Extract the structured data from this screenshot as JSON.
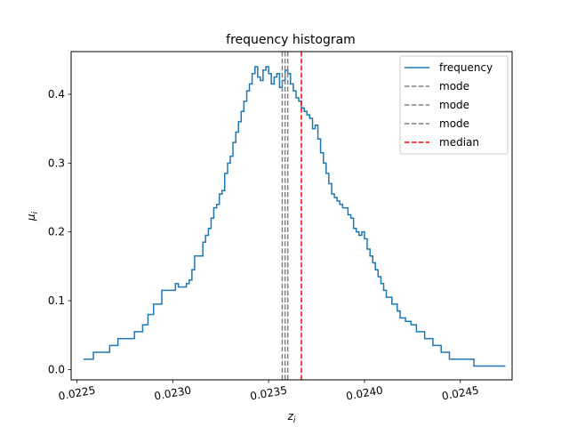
{
  "chart_data": {
    "type": "line",
    "title": "frequency histogram",
    "xlabel": "z",
    "xlabel_sub": "i",
    "ylabel": "μ",
    "ylabel_sub": "i",
    "xlim": [
      0.02247,
      0.02477
    ],
    "ylim": [
      -0.015,
      0.462
    ],
    "x_ticks": [
      0.0225,
      0.023,
      0.0235,
      0.024,
      0.0245
    ],
    "x_tick_labels": [
      "0.0225",
      "0.0230",
      "0.0235",
      "0.0240",
      "0.0245"
    ],
    "y_ticks": [
      0.0,
      0.1,
      0.2,
      0.3,
      0.4
    ],
    "y_tick_labels": [
      "0.0",
      "0.1",
      "0.2",
      "0.3",
      "0.4"
    ],
    "grid": false,
    "legend_position": "top-right",
    "series": [
      {
        "name": "frequency",
        "style": "step",
        "color": "#1f77b4",
        "x": [
          0.022535,
          0.022543,
          0.022586,
          0.022629,
          0.022671,
          0.022714,
          0.022757,
          0.0228,
          0.022843,
          0.022871,
          0.0229,
          0.022943,
          0.022986,
          0.023014,
          0.023029,
          0.023071,
          0.023086,
          0.0231,
          0.023114,
          0.023143,
          0.023157,
          0.023171,
          0.023186,
          0.0232,
          0.023214,
          0.023229,
          0.023243,
          0.023257,
          0.023271,
          0.023286,
          0.0233,
          0.023314,
          0.023329,
          0.023343,
          0.023357,
          0.023371,
          0.023386,
          0.0234,
          0.023414,
          0.023429,
          0.023443,
          0.023457,
          0.023471,
          0.023486,
          0.0235,
          0.023514,
          0.023529,
          0.023543,
          0.023557,
          0.023571,
          0.023586,
          0.0236,
          0.023614,
          0.023629,
          0.023643,
          0.023657,
          0.023671,
          0.023686,
          0.0237,
          0.023714,
          0.023729,
          0.023743,
          0.023757,
          0.023771,
          0.023786,
          0.0238,
          0.023814,
          0.023829,
          0.023843,
          0.023857,
          0.023871,
          0.023886,
          0.0239,
          0.023914,
          0.023929,
          0.023943,
          0.023957,
          0.023971,
          0.023986,
          0.024,
          0.024014,
          0.024029,
          0.024043,
          0.024057,
          0.024071,
          0.024086,
          0.0241,
          0.024114,
          0.024143,
          0.024171,
          0.024186,
          0.024214,
          0.024243,
          0.024271,
          0.024314,
          0.024357,
          0.0244,
          0.024443,
          0.024486,
          0.024529,
          0.024571,
          0.024614,
          0.024671,
          0.024729
        ],
        "y": [
          0.015,
          0.015,
          0.025,
          0.025,
          0.035,
          0.045,
          0.045,
          0.055,
          0.065,
          0.08,
          0.095,
          0.115,
          0.115,
          0.125,
          0.12,
          0.125,
          0.13,
          0.145,
          0.165,
          0.165,
          0.185,
          0.195,
          0.205,
          0.22,
          0.235,
          0.24,
          0.255,
          0.26,
          0.285,
          0.3,
          0.31,
          0.33,
          0.345,
          0.36,
          0.375,
          0.39,
          0.405,
          0.415,
          0.43,
          0.44,
          0.425,
          0.42,
          0.435,
          0.44,
          0.43,
          0.415,
          0.425,
          0.43,
          0.41,
          0.42,
          0.435,
          0.43,
          0.415,
          0.405,
          0.395,
          0.39,
          0.38,
          0.375,
          0.37,
          0.365,
          0.35,
          0.355,
          0.335,
          0.315,
          0.3,
          0.285,
          0.27,
          0.255,
          0.25,
          0.245,
          0.24,
          0.235,
          0.235,
          0.225,
          0.22,
          0.205,
          0.2,
          0.195,
          0.2,
          0.19,
          0.175,
          0.165,
          0.155,
          0.145,
          0.135,
          0.125,
          0.115,
          0.105,
          0.095,
          0.085,
          0.075,
          0.07,
          0.065,
          0.055,
          0.045,
          0.035,
          0.025,
          0.015,
          0.015,
          0.015,
          0.005,
          0.005,
          0.005,
          0.005
        ],
        "x_end": 0.024735
      }
    ],
    "vlines": [
      {
        "name": "mode",
        "x": 0.023571,
        "color": "#808080",
        "style": "dashed"
      },
      {
        "name": "mode",
        "x": 0.023586,
        "color": "#808080",
        "style": "dashed"
      },
      {
        "name": "mode",
        "x": 0.0236,
        "color": "#808080",
        "style": "dashed"
      },
      {
        "name": "median",
        "x": 0.023671,
        "color": "#ff0000",
        "style": "dashed"
      }
    ]
  }
}
